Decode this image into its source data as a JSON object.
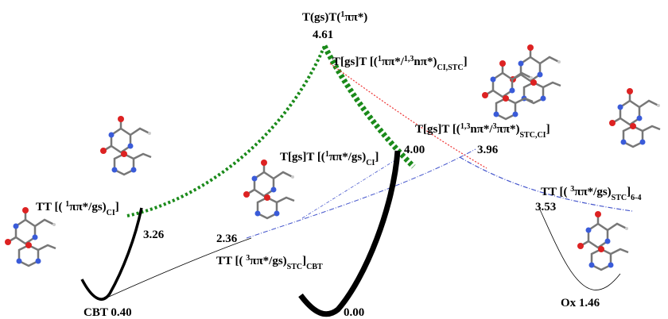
{
  "top": {
    "label": [
      "T(gs)T(",
      "1",
      "ππ*)"
    ],
    "energy": "4.61"
  },
  "ci_stc_upper": {
    "label": [
      "T[gs]T [(",
      "1",
      "ππ*/",
      "1,3",
      "nπ*)",
      "CI,STC",
      "]"
    ]
  },
  "stc_ci": {
    "label": [
      "T[gs]T [(",
      "1,3",
      "nπ*/",
      "3",
      "ππ*)",
      "STC,CI",
      "]"
    ],
    "energy": "3.96"
  },
  "ci_middle": {
    "label": [
      "T[gs]T [(",
      "1",
      "ππ*/gs)",
      "CI",
      "]"
    ],
    "energy": "4.00"
  },
  "ci_left": {
    "label": [
      "TT [( ",
      "1",
      "ππ*/gs)",
      "CI",
      "]"
    ],
    "energy": "3.26"
  },
  "stc_cbt": {
    "label": [
      "TT [( ",
      "3",
      "ππ*/gs)",
      "STC",
      "]",
      "CBT"
    ],
    "energy": "2.36"
  },
  "stc_64": {
    "label": [
      "TT [( ",
      "3",
      "ππ*/gs)",
      "STC",
      "]",
      "6-4"
    ],
    "energy": "3.53"
  },
  "minima": {
    "cbt": "CBT 0.40",
    "ground": "0.00",
    "ox": "Ox 1.46"
  }
}
